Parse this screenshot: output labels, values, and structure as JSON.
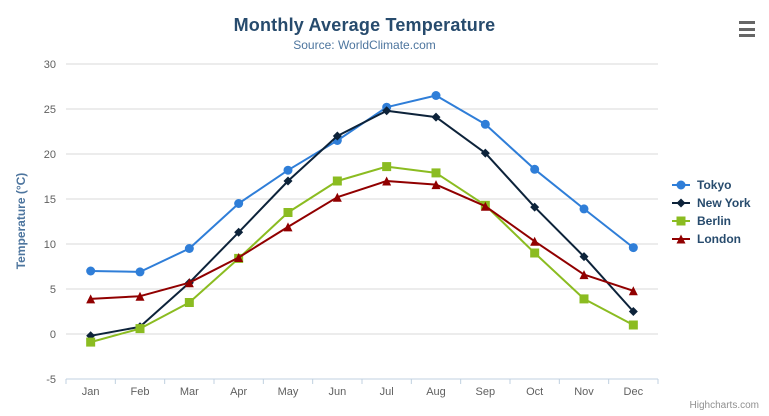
{
  "header": {
    "title": "Monthly Average Temperature",
    "subtitle": "Source: WorldClimate.com"
  },
  "credits": {
    "label": "Highcharts.com"
  },
  "export_menu": {
    "icon": "hamburger-icon"
  },
  "chart_data": {
    "type": "line",
    "title": "Monthly Average Temperature",
    "subtitle": "Source: WorldClimate.com",
    "categories": [
      "Jan",
      "Feb",
      "Mar",
      "Apr",
      "May",
      "Jun",
      "Jul",
      "Aug",
      "Sep",
      "Oct",
      "Nov",
      "Dec"
    ],
    "series": [
      {
        "name": "Tokyo",
        "color": "#2f7ed8",
        "marker": "circle",
        "values": [
          7.0,
          6.9,
          9.5,
          14.5,
          18.2,
          21.5,
          25.2,
          26.5,
          23.3,
          18.3,
          13.9,
          9.6
        ]
      },
      {
        "name": "New York",
        "color": "#0d233a",
        "marker": "diamond",
        "values": [
          -0.2,
          0.8,
          5.7,
          11.3,
          17.0,
          22.0,
          24.8,
          24.1,
          20.1,
          14.1,
          8.6,
          2.5
        ]
      },
      {
        "name": "Berlin",
        "color": "#8bbc21",
        "marker": "square",
        "values": [
          -0.9,
          0.6,
          3.5,
          8.4,
          13.5,
          17.0,
          18.6,
          17.9,
          14.3,
          9.0,
          3.9,
          1.0
        ]
      },
      {
        "name": "London",
        "color": "#910000",
        "marker": "triangle",
        "values": [
          3.9,
          4.2,
          5.7,
          8.5,
          11.9,
          15.2,
          17.0,
          16.6,
          14.2,
          10.3,
          6.6,
          4.8
        ]
      }
    ],
    "xlabel": "",
    "ylabel": "Temperature (°C)",
    "ylim": [
      -5,
      30
    ],
    "yticks": [
      -5,
      0,
      5,
      10,
      15,
      20,
      25,
      30
    ],
    "grid": true,
    "legend_position": "right",
    "colors": {
      "title": "#274b6d",
      "subtitle": "#4d759e",
      "axis_label": "#606060",
      "axis_title": "#4d759e",
      "grid_line": "#d8d8d8",
      "axis_line": "#c0d0e0",
      "legend_text": "#274b6d",
      "credits_text": "#909090"
    }
  }
}
